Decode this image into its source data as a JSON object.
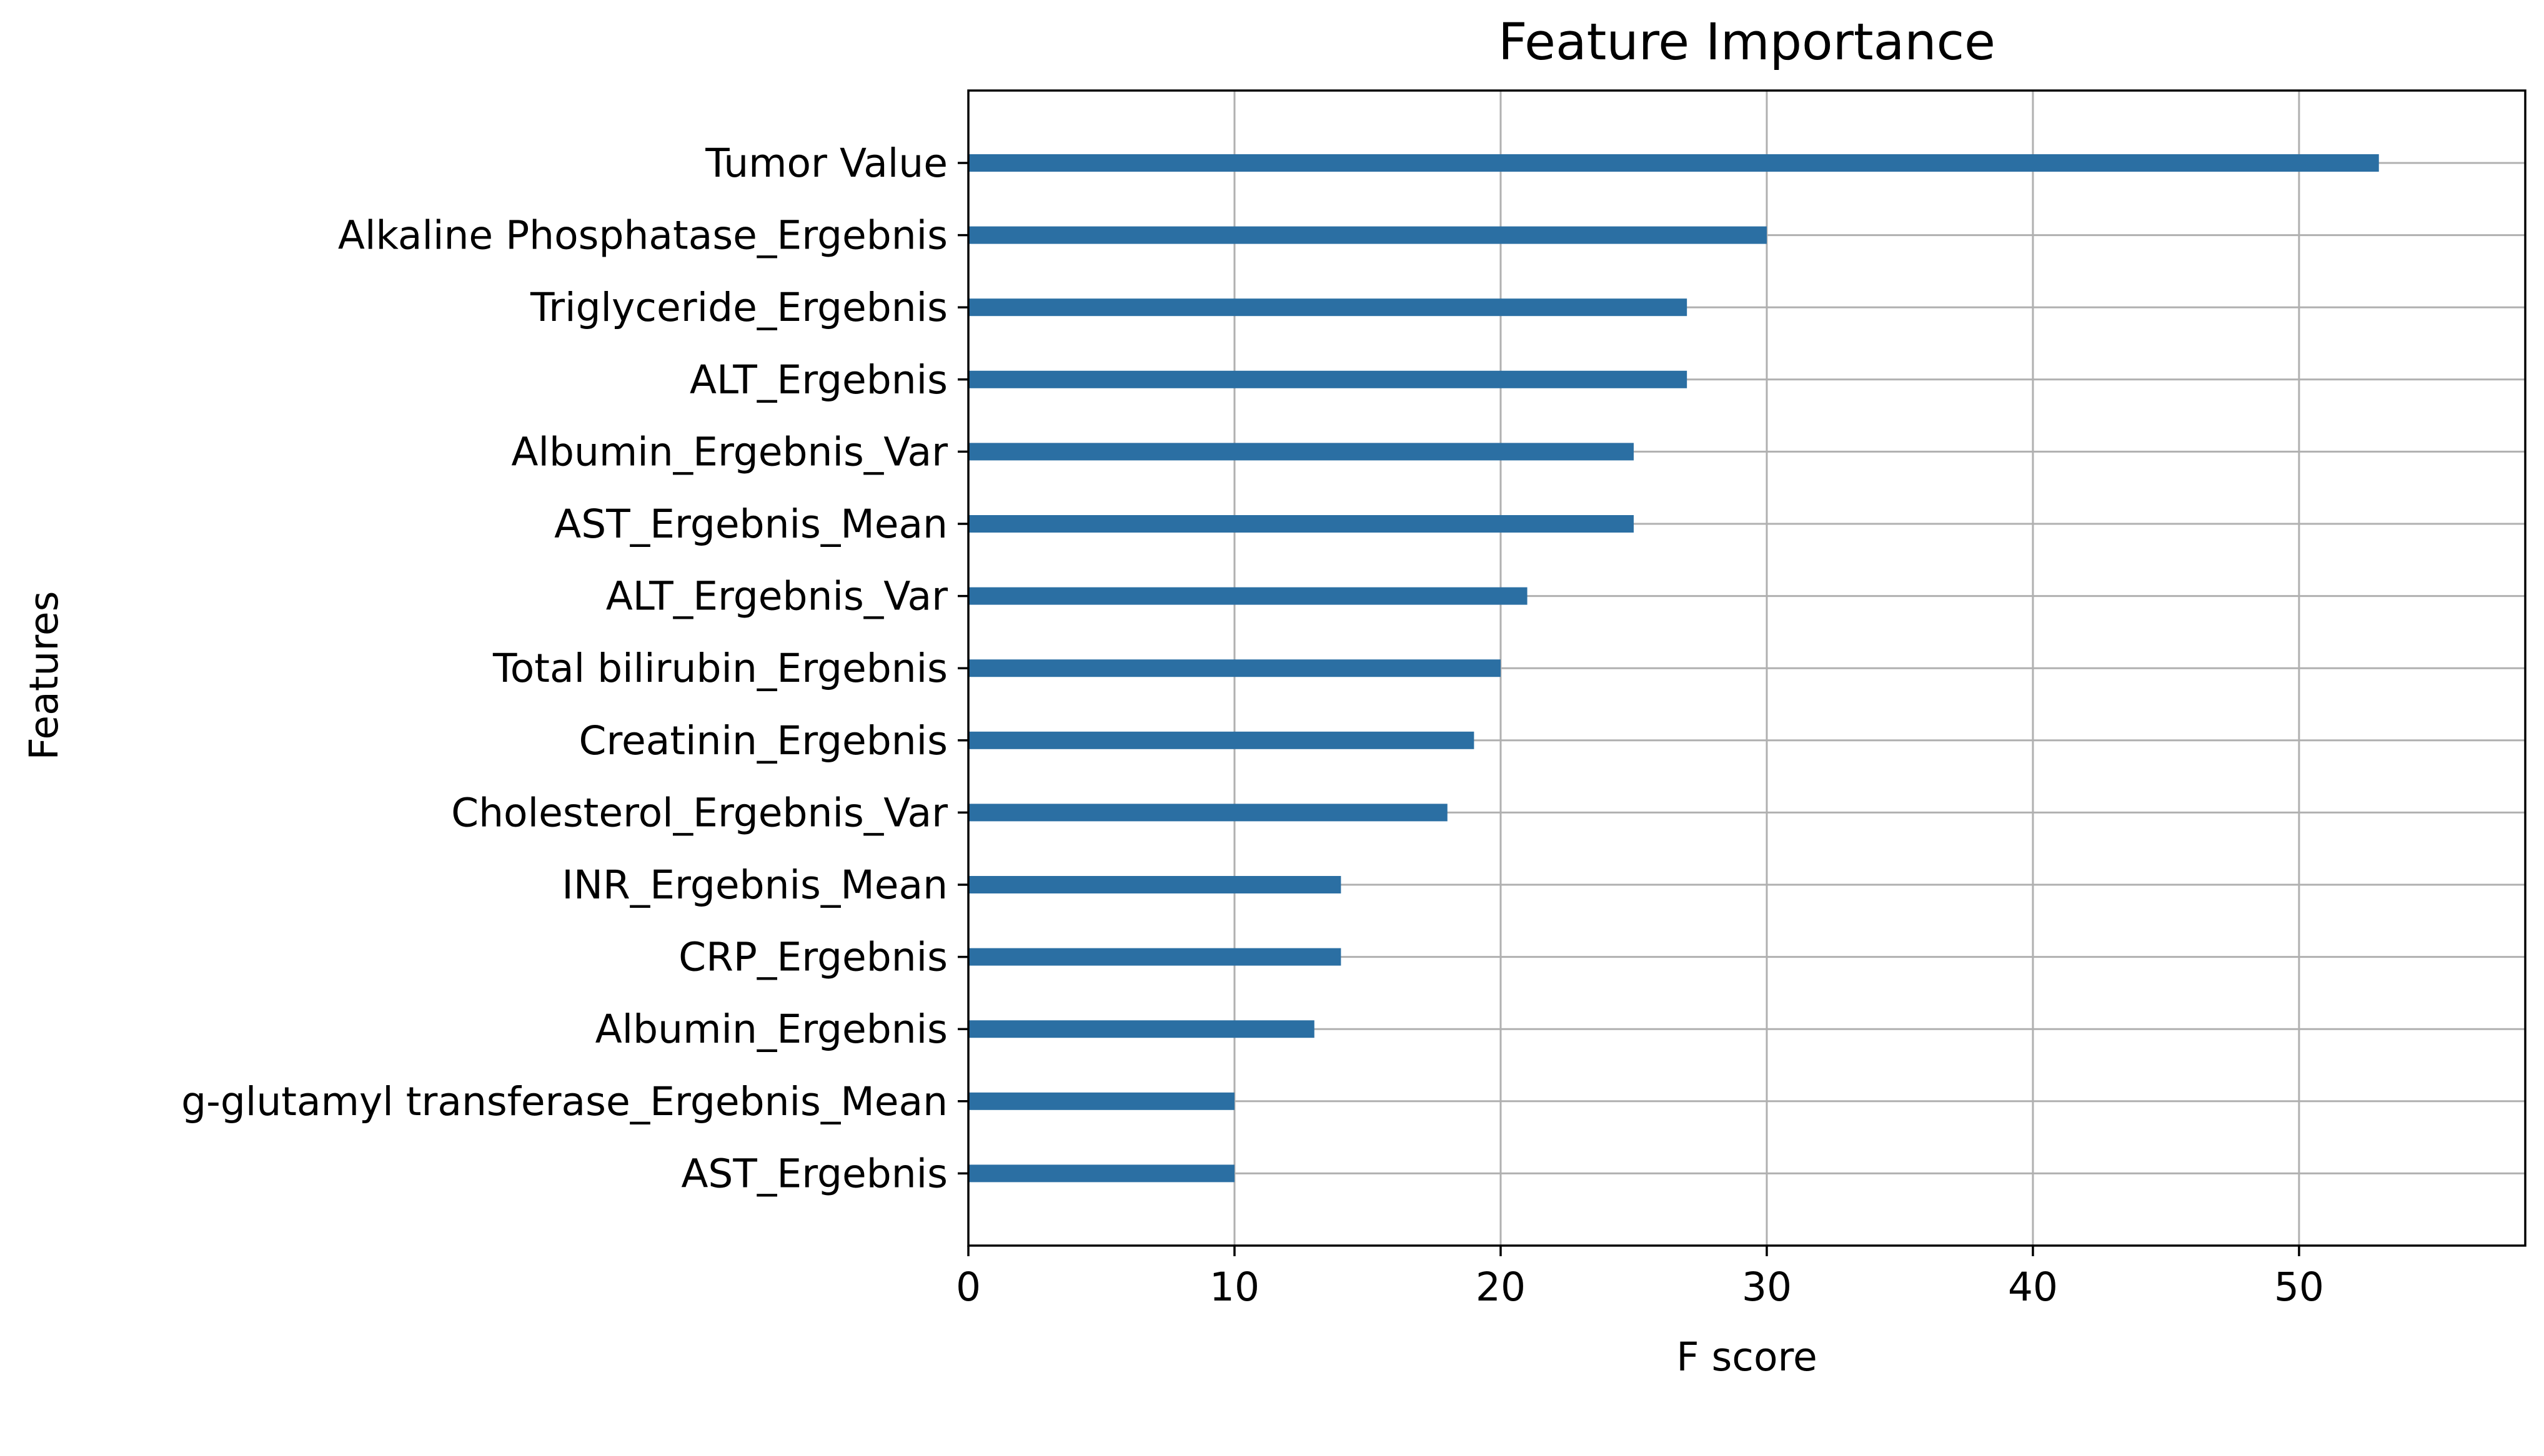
{
  "chart_data": {
    "type": "bar",
    "orientation": "horizontal",
    "title": "Feature Importance",
    "xlabel": "F score",
    "ylabel": "Features",
    "xlim": [
      0,
      58.5
    ],
    "xticks": [
      0,
      10,
      20,
      30,
      40,
      50
    ],
    "grid": true,
    "bar_color": "#2b6fa3",
    "categories": [
      "Tumor Value",
      "Alkaline Phosphatase_Ergebnis",
      "Triglyceride_Ergebnis",
      "ALT_Ergebnis",
      "Albumin_Ergebnis_Var",
      "AST_Ergebnis_Mean",
      "ALT_Ergebnis_Var",
      "Total bilirubin_Ergebnis",
      "Creatinin_Ergebnis",
      "Cholesterol_Ergebnis_Var",
      "INR_Ergebnis_Mean",
      "CRP_Ergebnis",
      "Albumin_Ergebnis",
      "g-glutamyl transferase_Ergebnis_Mean",
      "AST_Ergebnis"
    ],
    "values": [
      53,
      30,
      27,
      27,
      25,
      25,
      21,
      20,
      19,
      18,
      14,
      14,
      13,
      10,
      10
    ]
  }
}
